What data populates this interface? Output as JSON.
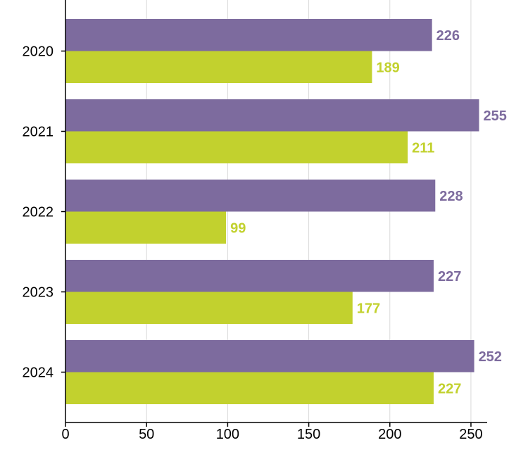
{
  "chart_data": {
    "type": "bar",
    "orientation": "horizontal",
    "categories": [
      "2020",
      "2021",
      "2022",
      "2023",
      "2024"
    ],
    "series": [
      {
        "values": [
          226,
          255,
          228,
          227,
          252
        ],
        "color": "#7d6b9e"
      },
      {
        "values": [
          189,
          211,
          99,
          177,
          227
        ],
        "color": "#c2d12e"
      }
    ],
    "x_ticks": [
      "0",
      "50",
      "100",
      "150",
      "200",
      "250"
    ],
    "xlim": [
      0,
      260
    ],
    "grid": "vertical",
    "legend": "none",
    "title": "",
    "xlabel": "",
    "ylabel": ""
  }
}
